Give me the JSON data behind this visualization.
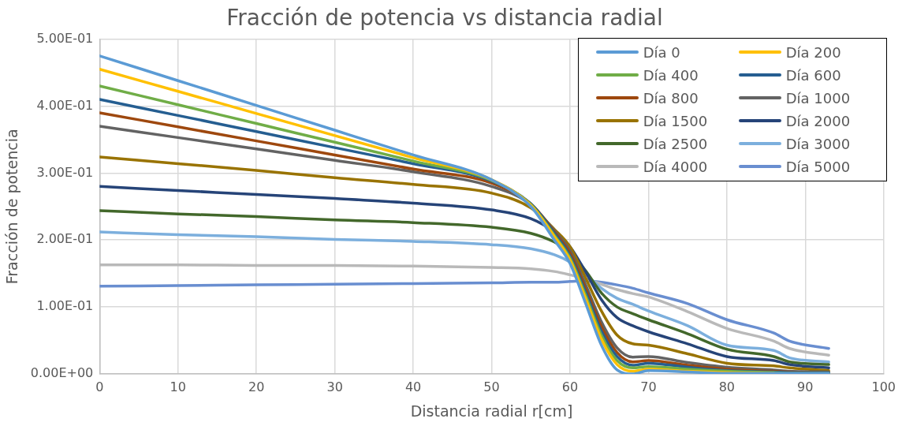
{
  "chart_data": {
    "type": "line",
    "title": "Fracción de potencia vs distancia radial",
    "xlabel": "Distancia radial r[cm]",
    "ylabel": "Fracción de potencia",
    "x": [
      0,
      10,
      20,
      30,
      40,
      50,
      55,
      58,
      60,
      62,
      64,
      66,
      68,
      70,
      75,
      80,
      86,
      88,
      93
    ],
    "xlim": [
      0,
      100
    ],
    "xticks": [
      0,
      10,
      20,
      30,
      40,
      50,
      60,
      70,
      80,
      90,
      100
    ],
    "ylim": [
      0,
      0.5
    ],
    "yticks": [
      {
        "value": 0,
        "label": "0.00E+00"
      },
      {
        "value": 0.1,
        "label": "1.00E-01"
      },
      {
        "value": 0.2,
        "label": "2.00E-01"
      },
      {
        "value": 0.3,
        "label": "3.00E-01"
      },
      {
        "value": 0.4,
        "label": "4.00E-01"
      },
      {
        "value": 0.5,
        "label": "5.00E-01"
      }
    ],
    "grid": true,
    "legend": "top right",
    "marker": "none",
    "line_style": "solid",
    "series": [
      {
        "name": "Día 0",
        "color": "#5b9bd5",
        "values": [
          0.475,
          0.438,
          0.401,
          0.364,
          0.327,
          0.29,
          0.25,
          0.2,
          0.165,
          0.105,
          0.043,
          0.006,
          0,
          0.005,
          0.003,
          0.001,
          0.001,
          0.001,
          0.001
        ]
      },
      {
        "name": "Día 200",
        "color": "#ffc000",
        "values": [
          0.455,
          0.422,
          0.389,
          0.356,
          0.323,
          0.29,
          0.252,
          0.205,
          0.17,
          0.112,
          0.052,
          0.014,
          0.004,
          0.007,
          0.004,
          0.002,
          0.001,
          null,
          null
        ]
      },
      {
        "name": "Día 400",
        "color": "#70ad47",
        "values": [
          0.43,
          0.402,
          0.374,
          0.346,
          0.318,
          0.289,
          0.253,
          0.207,
          0.173,
          0.117,
          0.058,
          0.02,
          0.009,
          0.011,
          0.007,
          0.004,
          0.002,
          0.001,
          0.001
        ]
      },
      {
        "name": "Día 600",
        "color": "#255e91",
        "values": [
          0.41,
          0.386,
          0.362,
          0.338,
          0.314,
          0.288,
          0.254,
          0.21,
          0.176,
          0.122,
          0.064,
          0.026,
          0.013,
          0.016,
          0.01,
          0.005,
          0.003,
          0.002,
          0.002
        ]
      },
      {
        "name": "Día 800",
        "color": "#9e480e",
        "values": [
          0.39,
          0.369,
          0.348,
          0.327,
          0.306,
          0.285,
          0.254,
          0.212,
          0.18,
          0.127,
          0.071,
          0.032,
          0.018,
          0.02,
          0.013,
          0.007,
          0.004,
          0.003,
          0.002
        ]
      },
      {
        "name": "Día 1000",
        "color": "#636363",
        "values": [
          0.37,
          0.353,
          0.336,
          0.319,
          0.302,
          0.28,
          0.253,
          0.214,
          0.184,
          0.133,
          0.078,
          0.039,
          0.025,
          0.026,
          0.017,
          0.01,
          0.006,
          0.004,
          0.003
        ]
      },
      {
        "name": "Día 1500",
        "color": "#997300",
        "values": [
          0.324,
          0.314,
          0.304,
          0.293,
          0.283,
          0.27,
          0.248,
          0.216,
          0.19,
          0.143,
          0.094,
          0.058,
          0.045,
          0.043,
          0.03,
          0.016,
          0.012,
          0.009,
          0.005
        ]
      },
      {
        "name": "Día 2000",
        "color": "#264478",
        "values": [
          0.28,
          0.274,
          0.268,
          0.262,
          0.255,
          0.245,
          0.232,
          0.212,
          0.19,
          0.152,
          0.111,
          0.084,
          0.072,
          0.063,
          0.045,
          0.026,
          0.02,
          0.014,
          0.009
        ]
      },
      {
        "name": "Día 2500",
        "color": "#43682b",
        "values": [
          0.244,
          0.239,
          0.235,
          0.23,
          0.226,
          0.219,
          0.21,
          0.197,
          0.182,
          0.154,
          0.121,
          0.1,
          0.09,
          0.081,
          0.06,
          0.037,
          0.026,
          0.018,
          0.014
        ]
      },
      {
        "name": "Día 3000",
        "color": "#7cafdd",
        "values": [
          0.212,
          0.208,
          0.205,
          0.201,
          0.198,
          0.193,
          0.187,
          0.178,
          0.167,
          0.149,
          0.128,
          0.113,
          0.104,
          0.094,
          0.072,
          0.043,
          0.035,
          0.024,
          0.018
        ]
      },
      {
        "name": "Día 4000",
        "color": "#b9b9b9",
        "values": [
          0.163,
          0.163,
          0.162,
          0.162,
          0.161,
          0.159,
          0.157,
          0.153,
          0.148,
          0.142,
          0.134,
          0.126,
          0.12,
          0.115,
          0.093,
          0.068,
          0.049,
          0.038,
          0.028
        ]
      },
      {
        "name": "Día 5000",
        "color": "#698ed0",
        "values": [
          0.131,
          0.132,
          0.133,
          0.134,
          0.135,
          0.136,
          0.137,
          0.137,
          0.138,
          0.139,
          0.137,
          0.133,
          0.128,
          0.121,
          0.105,
          0.081,
          0.061,
          0.049,
          0.038
        ]
      }
    ]
  }
}
